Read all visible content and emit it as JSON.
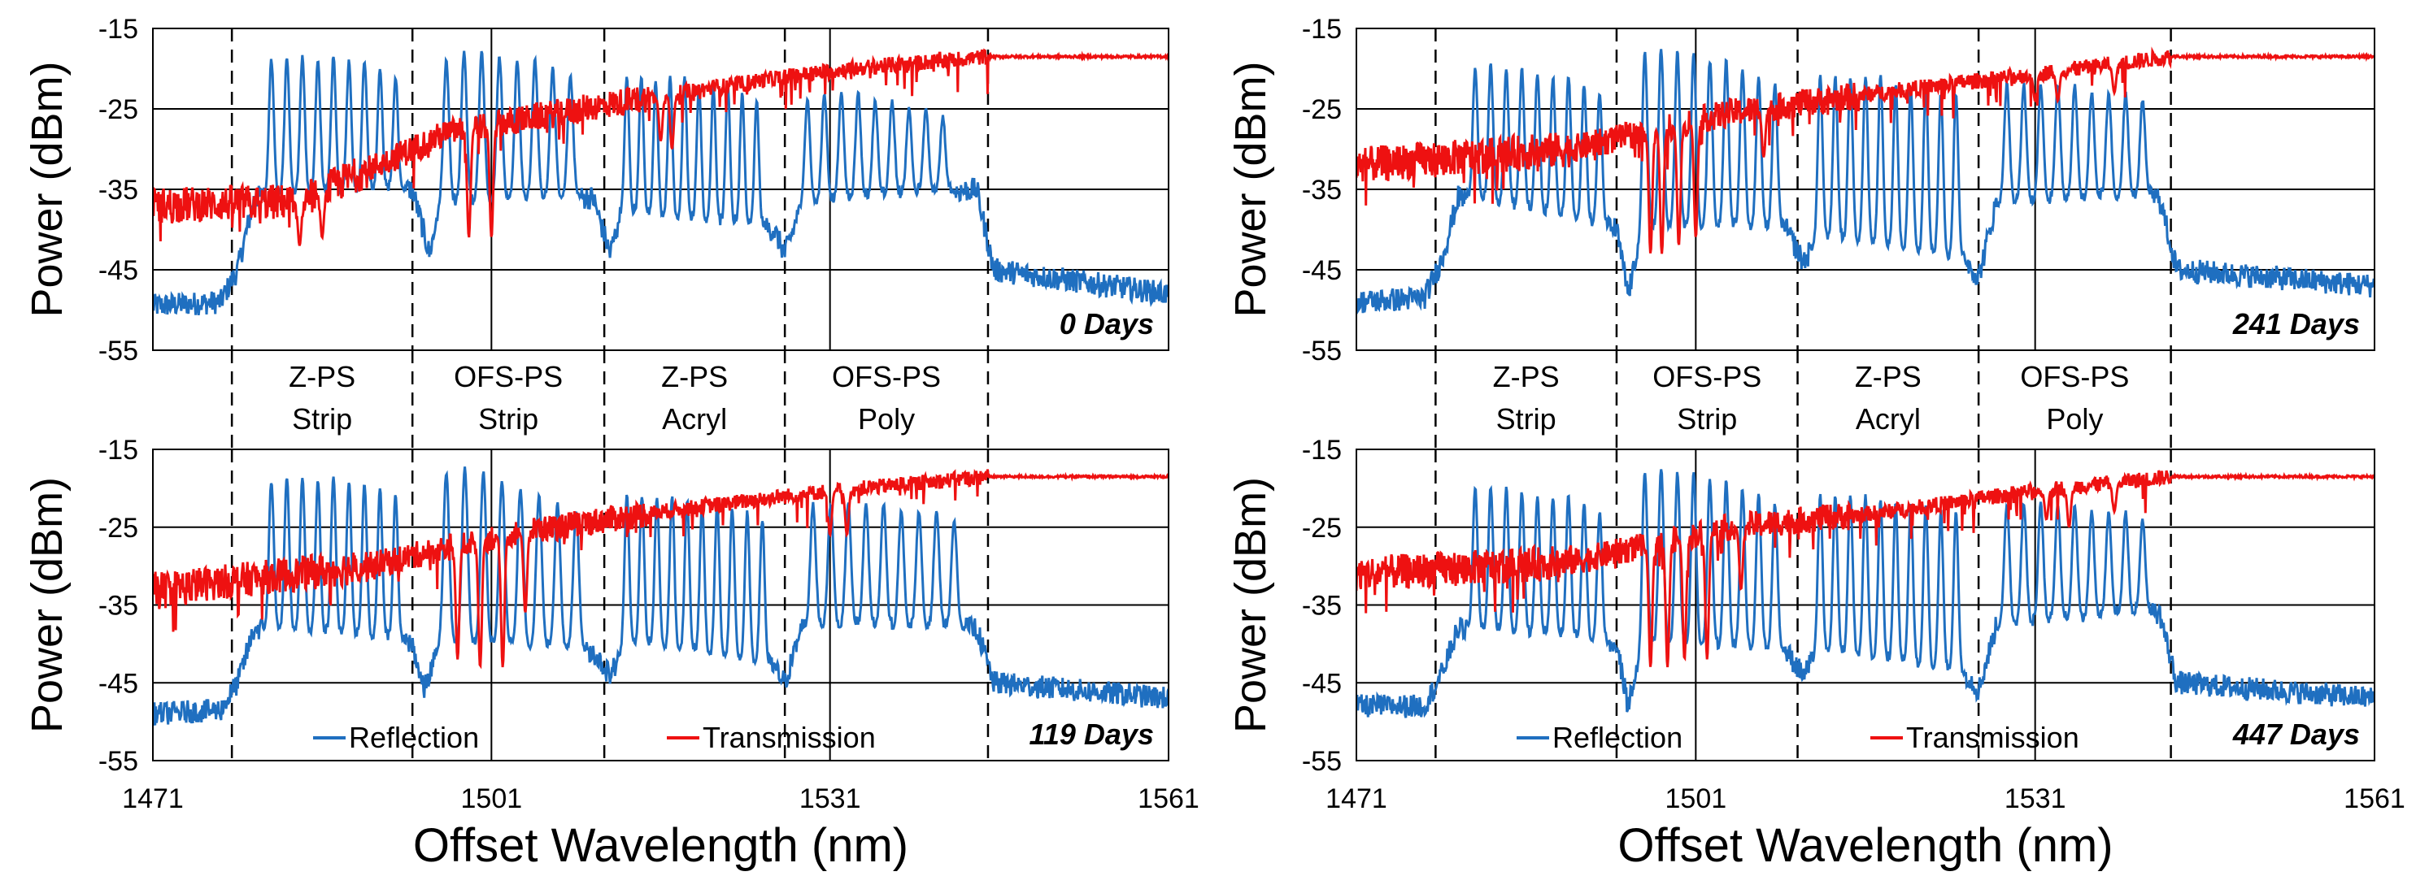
{
  "figure": {
    "xlabel": "Offset Wavelength (nm)"
  },
  "regions": [
    {
      "lines": [
        "Z-PS",
        "Strip"
      ]
    },
    {
      "lines": [
        "OFS-PS",
        "Strip"
      ]
    },
    {
      "lines": [
        "Z-PS",
        "Acryl"
      ]
    },
    {
      "lines": [
        "OFS-PS",
        "Poly"
      ]
    }
  ],
  "legend": {
    "reflection": "Reflection",
    "transmission": "Transmission"
  },
  "colors": {
    "reflection": "#1f6fc0",
    "transmission": "#ee1111",
    "grid": "#000000"
  },
  "chart_data": [
    {
      "type": "line",
      "panel": "top-left",
      "label": "0 Days",
      "xlim": [
        1471,
        1561
      ],
      "ylim": [
        -55,
        -15
      ],
      "x_ticks": [
        "1471",
        "1501",
        "1531",
        "1561"
      ],
      "y_ticks": [
        "-15",
        "-25",
        "-35",
        "-45",
        "-55"
      ],
      "ylabel": "Power (dBm)",
      "region_boundaries": [
        1478,
        1494,
        1511,
        1527,
        1545
      ],
      "series": [
        {
          "name": "Reflection",
          "baseline": [
            [
              1471,
              -49.5
            ],
            [
              1477,
              -49
            ],
            [
              1478.5,
              -45
            ],
            [
              1480,
              -36
            ],
            [
              1494,
              -35
            ],
            [
              1495.5,
              -43
            ],
            [
              1496.5,
              -37
            ],
            [
              1510,
              -36
            ],
            [
              1511.5,
              -43
            ],
            [
              1512.5,
              -38
            ],
            [
              1526,
              -40
            ],
            [
              1527,
              -43
            ],
            [
              1528.5,
              -37
            ],
            [
              1544,
              -35
            ],
            [
              1545.5,
              -45
            ],
            [
              1561,
              -48
            ]
          ],
          "groups": [
            {
              "start": 1481.5,
              "end": 1492.5,
              "count": 9,
              "peaks": [
                -19,
                -18.5,
                -18.5,
                -19,
                -18.5,
                -19,
                -19,
                -20,
                -21
              ]
            },
            {
              "start": 1497,
              "end": 1508,
              "count": 8,
              "peaks": [
                -19,
                -18,
                -18,
                -18.5,
                -19,
                -19,
                -20,
                -21
              ]
            },
            {
              "start": 1513,
              "end": 1524.5,
              "count": 10,
              "peaks": [
                -21,
                -21,
                -21.5,
                -21,
                -21,
                -22,
                -22,
                -22,
                -23,
                -24
              ]
            },
            {
              "start": 1529,
              "end": 1541,
              "count": 9,
              "peaks": [
                -24,
                -23,
                -23,
                -23,
                -24,
                -24,
                -25,
                -25,
                -26
              ]
            }
          ]
        },
        {
          "name": "Transmission",
          "trend": [
            [
              1471,
              -37
            ],
            [
              1484,
              -36.5
            ],
            [
              1497,
              -28
            ],
            [
              1511,
              -24.5
            ],
            [
              1527,
              -21
            ],
            [
              1533,
              -20
            ],
            [
              1545,
              -18.5
            ],
            [
              1561,
              -18.5
            ]
          ],
          "noise_until": 1545,
          "dips": [
            [
              1484,
              -42
            ],
            [
              1486,
              -41
            ],
            [
              1499,
              -41
            ],
            [
              1501,
              -41
            ],
            [
              1516,
              -29
            ],
            [
              1517,
              -30
            ]
          ]
        }
      ]
    },
    {
      "type": "line",
      "panel": "top-right",
      "label": "241 Days",
      "xlim": [
        1471,
        1561
      ],
      "ylim": [
        -55,
        -15
      ],
      "x_ticks": [
        "1471",
        "1501",
        "1531",
        "1561"
      ],
      "y_ticks": [
        "-15",
        "-25",
        "-35",
        "-45",
        "-55"
      ],
      "ylabel": "Power (dBm)",
      "region_boundaries": [
        1478,
        1494,
        1510,
        1526,
        1543
      ],
      "series": [
        {
          "name": "Reflection",
          "baseline": [
            [
              1471,
              -49
            ],
            [
              1477,
              -48.5
            ],
            [
              1478.5,
              -44
            ],
            [
              1480,
              -36
            ],
            [
              1494,
              -40
            ],
            [
              1495,
              -48
            ],
            [
              1496.5,
              -40
            ],
            [
              1509,
              -40
            ],
            [
              1510.5,
              -44
            ],
            [
              1512,
              -41
            ],
            [
              1525,
              -44
            ],
            [
              1526,
              -46
            ],
            [
              1527.5,
              -37
            ],
            [
              1542,
              -36
            ],
            [
              1543.5,
              -45
            ],
            [
              1561,
              -47
            ]
          ],
          "groups": [
            {
              "start": 1481.5,
              "end": 1492.5,
              "count": 9,
              "peaks": [
                -20,
                -19.5,
                -20,
                -20,
                -20.5,
                -21,
                -21,
                -22,
                -23
              ]
            },
            {
              "start": 1496.5,
              "end": 1508,
              "count": 9,
              "peaks": [
                -18,
                -17.5,
                -18,
                -18,
                -19,
                -19,
                -20,
                -21,
                -22
              ]
            },
            {
              "start": 1512,
              "end": 1524,
              "count": 10,
              "peaks": [
                -21,
                -21,
                -21,
                -21,
                -21,
                -22,
                -22,
                -22,
                -23,
                -23
              ]
            },
            {
              "start": 1528.5,
              "end": 1540.5,
              "count": 9,
              "peaks": [
                -22,
                -22,
                -22,
                -22,
                -22,
                -23,
                -23,
                -23,
                -24
              ]
            }
          ]
        },
        {
          "name": "Transmission",
          "trend": [
            [
              1471,
              -32
            ],
            [
              1490,
              -30
            ],
            [
              1504,
              -25.5
            ],
            [
              1520,
              -22.5
            ],
            [
              1532,
              -20.5
            ],
            [
              1543,
              -18.5
            ],
            [
              1561,
              -18.5
            ]
          ],
          "noise_until": 1543,
          "dips": [
            [
              1497,
              -43
            ],
            [
              1498,
              -43
            ],
            [
              1499.5,
              -42
            ],
            [
              1501,
              -41
            ],
            [
              1507,
              -31
            ],
            [
              1531,
              -24
            ],
            [
              1533,
              -24
            ],
            [
              1538,
              -23
            ]
          ]
        }
      ]
    },
    {
      "type": "line",
      "panel": "bottom-left",
      "label": "119 Days",
      "xlim": [
        1471,
        1561
      ],
      "ylim": [
        -55,
        -15
      ],
      "x_ticks": [
        "1471",
        "1501",
        "1531",
        "1561"
      ],
      "y_ticks": [
        "-15",
        "-25",
        "-35",
        "-45",
        "-55"
      ],
      "ylabel": "Power (dBm)",
      "region_boundaries": [
        1478,
        1494,
        1511,
        1527,
        1545
      ],
      "series": [
        {
          "name": "Reflection",
          "baseline": [
            [
              1471,
              -49
            ],
            [
              1477,
              -48.5
            ],
            [
              1478.5,
              -45
            ],
            [
              1480,
              -38
            ],
            [
              1494,
              -40
            ],
            [
              1495,
              -46
            ],
            [
              1496.5,
              -40
            ],
            [
              1510,
              -41
            ],
            [
              1511.5,
              -44
            ],
            [
              1513,
              -40
            ],
            [
              1526,
              -43
            ],
            [
              1527,
              -45
            ],
            [
              1528.5,
              -38
            ],
            [
              1544,
              -38
            ],
            [
              1545.5,
              -45
            ],
            [
              1561,
              -47
            ]
          ],
          "groups": [
            {
              "start": 1481.5,
              "end": 1492.5,
              "count": 9,
              "peaks": [
                -19,
                -18.5,
                -18.5,
                -19,
                -18.5,
                -19,
                -19.5,
                -20,
                -21
              ]
            },
            {
              "start": 1497,
              "end": 1508.5,
              "count": 8,
              "peaks": [
                -18,
                -17.5,
                -18,
                -19,
                -20,
                -21,
                -22,
                -23
              ]
            },
            {
              "start": 1513,
              "end": 1525,
              "count": 10,
              "peaks": [
                -21,
                -21,
                -21,
                -21,
                -21.5,
                -22,
                -22,
                -22.5,
                -23,
                -24
              ]
            },
            {
              "start": 1529.5,
              "end": 1542,
              "count": 9,
              "peaks": [
                -22,
                -22,
                -22,
                -22,
                -22,
                -23,
                -23,
                -23,
                -24
              ]
            }
          ]
        },
        {
          "name": "Transmission",
          "trend": [
            [
              1471,
              -33
            ],
            [
              1490,
              -30
            ],
            [
              1502,
              -26
            ],
            [
              1516,
              -23
            ],
            [
              1530,
              -20.5
            ],
            [
              1545,
              -18.5
            ],
            [
              1561,
              -18.5
            ]
          ],
          "noise_until": 1545,
          "dips": [
            [
              1498,
              -42
            ],
            [
              1500,
              -43
            ],
            [
              1502,
              -43
            ],
            [
              1504,
              -36
            ],
            [
              1531,
              -26
            ],
            [
              1532.5,
              -26
            ]
          ]
        }
      ]
    },
    {
      "type": "line",
      "panel": "bottom-right",
      "label": "447 Days",
      "xlim": [
        1471,
        1561
      ],
      "ylim": [
        -55,
        -15
      ],
      "x_ticks": [
        "1471",
        "1501",
        "1531",
        "1561"
      ],
      "y_ticks": [
        "-15",
        "-25",
        "-35",
        "-45",
        "-55"
      ],
      "ylabel": "Power (dBm)",
      "region_boundaries": [
        1478,
        1494,
        1510,
        1526,
        1543
      ],
      "series": [
        {
          "name": "Reflection",
          "baseline": [
            [
              1471,
              -48
            ],
            [
              1477,
              -48
            ],
            [
              1478.5,
              -44
            ],
            [
              1480,
              -38
            ],
            [
              1494,
              -40
            ],
            [
              1495,
              -48
            ],
            [
              1496.5,
              -40
            ],
            [
              1509,
              -41
            ],
            [
              1510.5,
              -44
            ],
            [
              1512,
              -41
            ],
            [
              1525,
              -44
            ],
            [
              1526,
              -46
            ],
            [
              1527.5,
              -38
            ],
            [
              1542,
              -36
            ],
            [
              1543.5,
              -45
            ],
            [
              1561,
              -47
            ]
          ],
          "groups": [
            {
              "start": 1481.5,
              "end": 1492.5,
              "count": 9,
              "peaks": [
                -20,
                -20,
                -20,
                -20.5,
                -21,
                -21,
                -21,
                -22,
                -23
              ]
            },
            {
              "start": 1496.5,
              "end": 1508,
              "count": 9,
              "peaks": [
                -18,
                -17.5,
                -18,
                -18,
                -19,
                -19,
                -20,
                -21,
                -22
              ]
            },
            {
              "start": 1512,
              "end": 1524,
              "count": 10,
              "peaks": [
                -21,
                -21,
                -21,
                -21,
                -21.5,
                -22,
                -22,
                -22,
                -23,
                -23
              ]
            },
            {
              "start": 1528.5,
              "end": 1540.5,
              "count": 9,
              "peaks": [
                -22,
                -22,
                -22,
                -22,
                -22,
                -23,
                -23,
                -23,
                -24
              ]
            }
          ]
        },
        {
          "name": "Transmission",
          "trend": [
            [
              1471,
              -31
            ],
            [
              1490,
              -29.5
            ],
            [
              1504,
              -25
            ],
            [
              1518,
              -23
            ],
            [
              1530,
              -20.5
            ],
            [
              1543,
              -18.5
            ],
            [
              1561,
              -18.5
            ]
          ],
          "noise_until": 1543,
          "dips": [
            [
              1497,
              -43
            ],
            [
              1498.5,
              -43
            ],
            [
              1500,
              -42
            ],
            [
              1502,
              -42
            ],
            [
              1505,
              -33
            ],
            [
              1532,
              -24
            ],
            [
              1534,
              -25
            ],
            [
              1538,
              -23
            ]
          ]
        }
      ]
    }
  ]
}
